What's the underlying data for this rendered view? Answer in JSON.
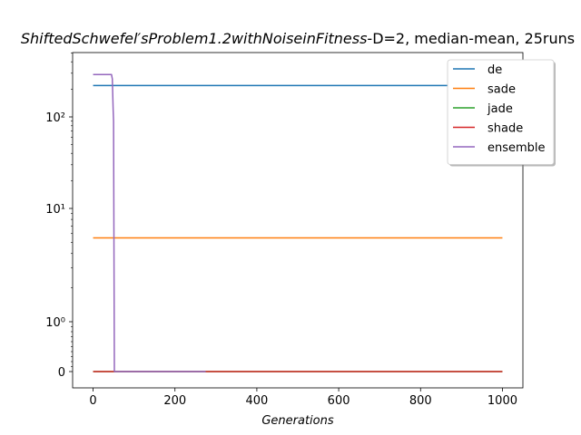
{
  "chart_data": {
    "type": "line",
    "title": {
      "italic_part": "ShiftedSchwefel′sProblem1.2withNoiseinFitness",
      "plain_part": "-D=2, median-mean, 25runs"
    },
    "xlabel": "Generations",
    "ylabel": "",
    "yscale": "symlog",
    "xlim": [
      -50,
      1050
    ],
    "xticks": [
      0,
      200,
      400,
      600,
      800,
      1000
    ],
    "xtick_labels": [
      "0",
      "200",
      "400",
      "600",
      "800",
      "1000"
    ],
    "yticks": [
      0,
      1,
      10,
      100
    ],
    "ytick_labels": [
      "0",
      "10⁰",
      "10¹",
      "10²"
    ],
    "grid": false,
    "legend_position": "top-right",
    "series": [
      {
        "name": "de",
        "color": "#1f77b4",
        "x": [
          0,
          1000
        ],
        "y": [
          220,
          220
        ]
      },
      {
        "name": "sade",
        "color": "#ff7f0e",
        "x": [
          0,
          1000
        ],
        "y": [
          5.5,
          5.5
        ]
      },
      {
        "name": "jade",
        "color": "#2ca02c",
        "x": [
          0,
          1000
        ],
        "y": [
          0,
          0
        ]
      },
      {
        "name": "shade",
        "color": "#d62728",
        "x": [
          0,
          1000
        ],
        "y": [
          0,
          0
        ]
      },
      {
        "name": "ensemble",
        "color": "#9467bd",
        "x": [
          0,
          45,
          47,
          49,
          50,
          52,
          53,
          100,
          275
        ],
        "y": [
          290,
          290,
          260,
          120,
          90,
          0.005,
          0,
          0,
          0
        ]
      }
    ]
  }
}
